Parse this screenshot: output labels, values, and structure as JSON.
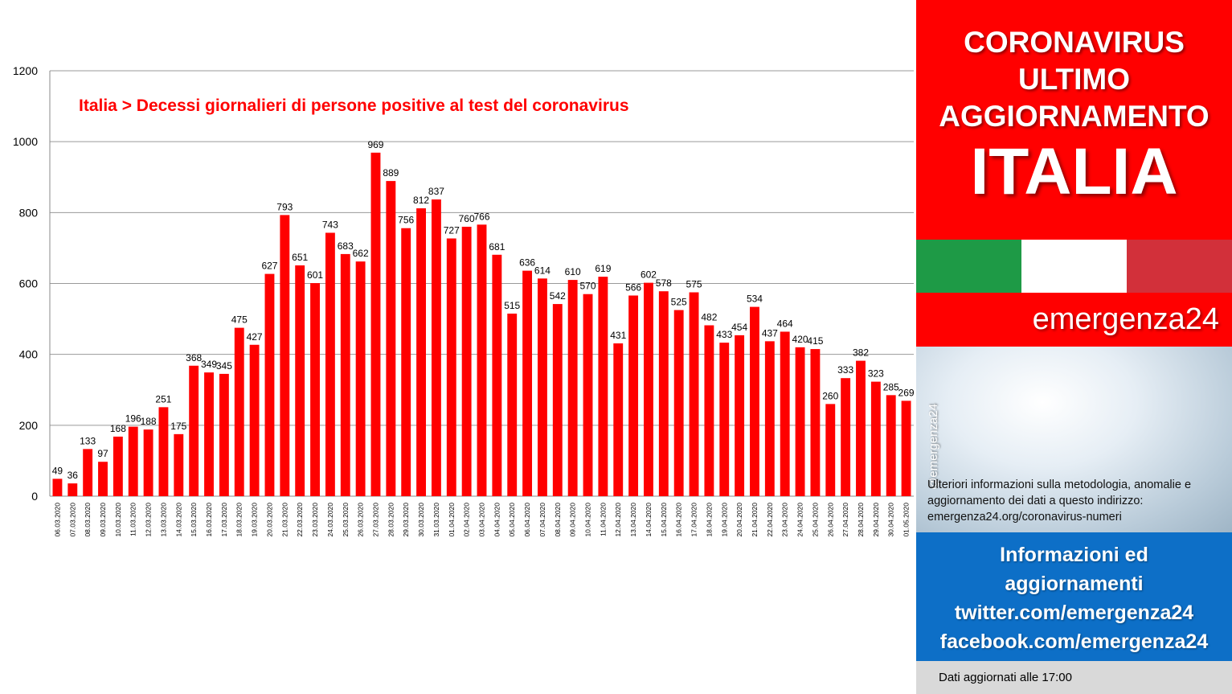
{
  "chart_data": {
    "type": "bar",
    "title": "Italia > Decessi giornalieri di persone positive al test del coronavirus",
    "xlabel": "",
    "ylabel": "",
    "ylim": [
      0,
      1200
    ],
    "yticks": [
      "0",
      "200",
      "400",
      "600",
      "800",
      "1000",
      "1200"
    ],
    "grid": true,
    "bar_color": "#ff0000",
    "categories": [
      "06.03.2020",
      "07.03.2020",
      "08.03.2020",
      "09.03.2020",
      "10.03.2020",
      "11.03.2020",
      "12.03.2020",
      "13.03.2020",
      "14.03.2020",
      "15.03.2020",
      "16.03.2020",
      "17.03.2020",
      "18.03.2020",
      "19.03.2020",
      "20.03.2020",
      "21.03.2020",
      "22.03.2020",
      "23.03.2020",
      "24.03.2020",
      "25.03.2020",
      "26.03.2020",
      "27.03.2020",
      "28.03.2020",
      "29.03.2020",
      "30.03.2020",
      "31.03.2020",
      "01.04.2020",
      "02.04.2020",
      "03.04.2020",
      "04.04.2020",
      "05.04.2020",
      "06.04.2020",
      "07.04.2020",
      "08.04.2020",
      "09.04.2020",
      "10.04.2020",
      "11.04.2020",
      "12.04.2020",
      "13.04.2020",
      "14.04.2020",
      "15.04.2020",
      "16.04.2020",
      "17.04.2020",
      "18.04.2020",
      "19.04.2020",
      "20.04.2020",
      "21.04.2020",
      "22.04.2020",
      "23.04.2020",
      "24.04.2020",
      "25.04.2020",
      "26.04.2020",
      "27.04.2020",
      "28.04.2020",
      "29.04.2020",
      "30.04.2020",
      "01.05.2020"
    ],
    "values": [
      49,
      36,
      133,
      97,
      168,
      196,
      188,
      251,
      175,
      368,
      349,
      345,
      475,
      427,
      627,
      793,
      651,
      601,
      743,
      683,
      662,
      969,
      889,
      756,
      812,
      837,
      727,
      760,
      766,
      681,
      515,
      636,
      614,
      542,
      610,
      570,
      619,
      431,
      566,
      602,
      578,
      525,
      575,
      482,
      433,
      454,
      534,
      437,
      464,
      420,
      415,
      260,
      333,
      382,
      323,
      285,
      269
    ]
  },
  "panel": {
    "header_lines": [
      "CORONAVIRUS",
      "ULTIMO",
      "AGGIORNAMENTO"
    ],
    "country": "ITALIA",
    "flag_colors": [
      "#1e9a46",
      "#ffffff",
      "#d2303a"
    ],
    "brand": "emergenza24",
    "handle": "@emergenza24",
    "info_text": "Ulteriori informazioni sulla metodologia, anomalie e aggiornamento dei dati a questo indirizzo: emergenza24.org/coronavirus-numeri",
    "social_lines": [
      "Informazioni ed",
      "aggiornamenti",
      "twitter.com/emergenza24",
      "facebook.com/emergenza24"
    ],
    "footer": "Dati aggiornati alle 17:00"
  }
}
